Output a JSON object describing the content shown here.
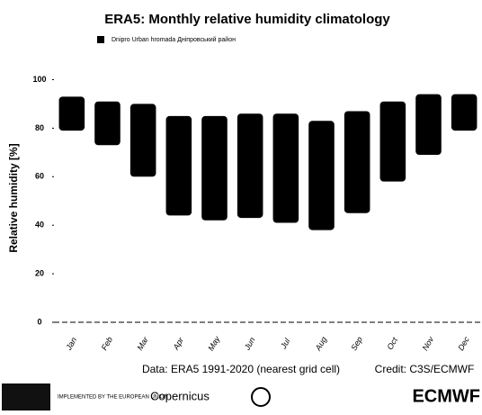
{
  "chart_data": {
    "type": "range_bar",
    "title": "ERA5: Monthly relative humidity climatology",
    "y_label": "Relative humidity [%]",
    "categories": [
      "Jan",
      "Feb",
      "Mar",
      "Apr",
      "May",
      "Jun",
      "Jul",
      "Aug",
      "Sep",
      "Oct",
      "Nov",
      "Dec"
    ],
    "series": [
      {
        "name": "Dnipro Urban hromada Дніпровський район",
        "color": "#000000",
        "low": [
          79,
          73,
          60,
          44,
          42,
          43,
          41,
          38,
          45,
          58,
          69,
          79
        ],
        "high": [
          93,
          91,
          90,
          85,
          85,
          86,
          86,
          83,
          87,
          91,
          94,
          94
        ]
      }
    ],
    "ylim": [
      0,
      105
    ],
    "yticks": [
      0,
      20,
      40,
      60,
      80,
      100
    ],
    "grid": false,
    "footer": {
      "data": "Data: ERA5 1991-2020 (nearest grid cell)",
      "credit": "Credit: C3S/ECMWF"
    },
    "logos": [
      "IMPLEMENTED BY THE EUROPEAN UNION",
      "Copernicus",
      "ECMWF"
    ]
  }
}
